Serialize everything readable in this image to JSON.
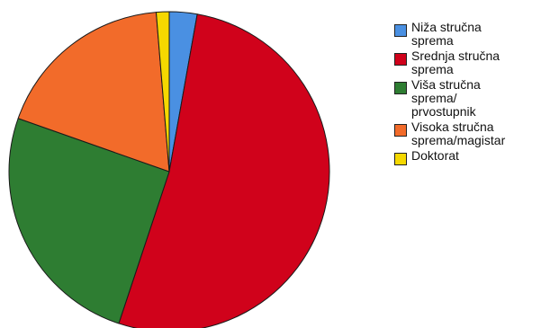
{
  "chart_data": {
    "type": "pie",
    "title": "",
    "series": [
      {
        "values": [
          2.8,
          52.3,
          25.3,
          18.3,
          1.3
        ]
      }
    ],
    "categories": [
      "Niža stručna\nsprema",
      "Srednja stručna\nsprema",
      "Viša stručna\nsprema/\nprvostupnik",
      "Visoka stručna\nsprema/magistar",
      "Doktorat"
    ],
    "colors": [
      "#4a90e2",
      "#d0021b",
      "#2e7d32",
      "#f26b2a",
      "#f5d800"
    ],
    "legend_position": "right"
  }
}
